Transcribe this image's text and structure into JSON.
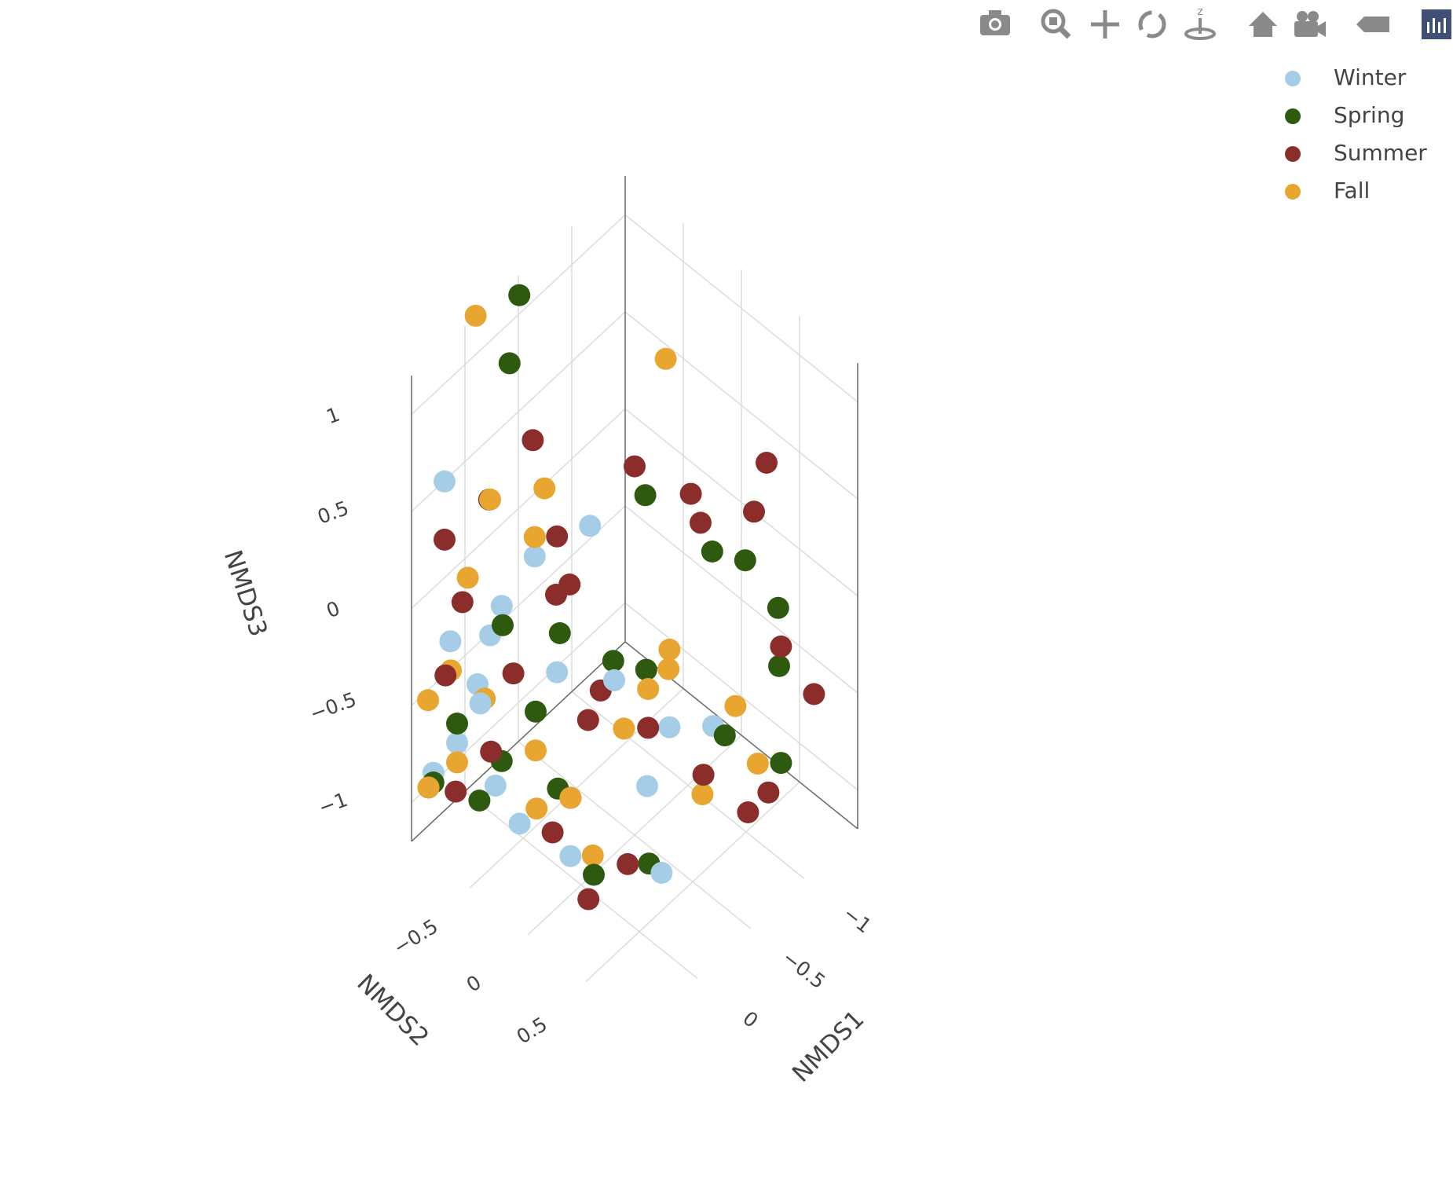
{
  "chart_data": {
    "type": "scatter3d",
    "xaxis_title": "NMDS1",
    "yaxis_title": "NMDS2",
    "zaxis_title": "NMDS3",
    "xlim": [
      -1.5,
      0.5
    ],
    "ylim": [
      -1,
      1
    ],
    "zlim": [
      -1.2,
      1.2
    ],
    "xticks": [
      {
        "value": -1,
        "label": "−1"
      },
      {
        "value": -0.5,
        "label": "−0.5"
      },
      0
    ],
    "yticks": [
      {
        "value": -0.5,
        "label": "−0.5"
      },
      0,
      0.5
    ],
    "zticks": [
      {
        "value": -1,
        "label": "−1"
      },
      {
        "value": -0.5,
        "label": "−0.5"
      },
      0,
      0.5,
      1
    ],
    "grid": true,
    "legend_position": "top-right",
    "series": [
      {
        "name": "Winter",
        "color": "#a6cde8",
        "x": [
          0.3,
          0.2,
          -0.1,
          0.4,
          0.1,
          -0.3,
          -0.2,
          0.2,
          0.35,
          0.0,
          -0.5,
          -0.4,
          -0.8,
          0.25,
          0.1,
          -0.6,
          0.4,
          0.3,
          -0.1,
          0.15
        ],
        "y": [
          -0.9,
          -0.6,
          -0.3,
          -0.7,
          -0.8,
          -0.2,
          0.1,
          -0.5,
          -0.95,
          -0.4,
          0.3,
          0.2,
          0.4,
          -0.3,
          0.0,
          0.5,
          -0.5,
          -0.85,
          0.6,
          -0.6
        ],
        "z": [
          0.6,
          -0.1,
          -0.3,
          -0.6,
          -0.5,
          0.4,
          -0.2,
          0.1,
          -0.9,
          0.3,
          -0.5,
          -0.8,
          -0.6,
          -0.9,
          -1.0,
          -0.7,
          -0.3,
          -0.2,
          -0.9,
          -0.9
        ]
      },
      {
        "name": "Spring",
        "color": "#2d5a0e",
        "x": [
          -0.4,
          -0.2,
          0.3,
          0.4,
          0.1,
          -0.3,
          0.2,
          0.45,
          0.0,
          -0.5,
          -0.9,
          -1.1,
          -1.2,
          -0.8,
          -1.0,
          0.3,
          0.1,
          -0.2,
          0.35,
          -0.6,
          0.2,
          -1.3
        ],
        "y": [
          -0.9,
          -0.8,
          -0.4,
          -0.7,
          -0.3,
          0.0,
          -0.5,
          -0.9,
          -0.2,
          0.1,
          0.3,
          0.4,
          0.6,
          0.5,
          0.8,
          -0.6,
          0.2,
          0.4,
          -0.95,
          0.0,
          0.0,
          0.5
        ],
        "z": [
          1.2,
          1.0,
          0.1,
          -0.5,
          -0.4,
          -0.2,
          -0.7,
          -0.9,
          -0.8,
          -0.3,
          0.2,
          0.1,
          -0.4,
          -0.6,
          -0.7,
          -0.9,
          -1.0,
          -1.0,
          -0.95,
          0.5,
          0.2,
          -0.2
        ]
      },
      {
        "name": "Summer",
        "color": "#8b2e2b",
        "x": [
          -0.2,
          0.1,
          0.3,
          -0.1,
          0.0,
          -0.5,
          -0.7,
          -0.9,
          -1.3,
          -1.4,
          -1.0,
          0.2,
          0.4,
          -0.3,
          0.1,
          -0.4,
          0.3,
          -0.6,
          -0.8,
          0.0,
          0.25,
          -1.2,
          -1.1,
          0.15,
          -0.2,
          0.35,
          -0.5,
          0.05
        ],
        "y": [
          -0.6,
          -0.7,
          -0.9,
          -0.3,
          -0.1,
          0.0,
          0.3,
          0.2,
          0.4,
          0.2,
          0.8,
          -0.4,
          -0.8,
          0.3,
          0.0,
          -0.2,
          -0.5,
          0.5,
          0.7,
          0.4,
          -0.85,
          0.9,
          0.6,
          0.2,
          -0.4,
          -0.7,
          -0.4,
          -0.2
        ],
        "z": [
          0.7,
          0.5,
          0.3,
          0.4,
          0.3,
          0.7,
          0.6,
          0.3,
          0.5,
          0.1,
          -0.1,
          -0.2,
          -0.3,
          -0.4,
          -0.7,
          -0.5,
          -0.6,
          -0.7,
          -0.9,
          -0.9,
          -1.0,
          -0.4,
          -1.0,
          -1.1,
          0.0,
          0.1,
          -0.8,
          -1.0
        ]
      },
      {
        "name": "Fall",
        "color": "#e8a630",
        "x": [
          -0.1,
          -0.9,
          0.2,
          0.0,
          0.3,
          0.4,
          -0.2,
          0.1,
          0.35,
          -0.4,
          -0.6,
          -1.0,
          -0.9,
          0.2,
          0.45,
          0.0,
          -0.3,
          0.25,
          -0.7,
          0.1,
          0.4,
          -0.5
        ],
        "y": [
          -1.0,
          -0.1,
          -0.6,
          -0.4,
          -0.7,
          -0.95,
          -0.5,
          -0.3,
          -0.8,
          0.0,
          0.2,
          0.6,
          0.5,
          -0.2,
          -0.9,
          0.1,
          0.3,
          -0.6,
          0.4,
          0.0,
          -0.7,
          0.3
        ],
        "z": [
          1.2,
          1.0,
          0.6,
          0.4,
          0.2,
          -0.5,
          0.5,
          -0.6,
          -0.3,
          -0.6,
          -0.3,
          -0.8,
          -0.5,
          -0.8,
          -0.9,
          -1.0,
          -0.2,
          -0.4,
          -0.9,
          -0.7,
          -0.7,
          -0.1
        ]
      }
    ]
  }
}
